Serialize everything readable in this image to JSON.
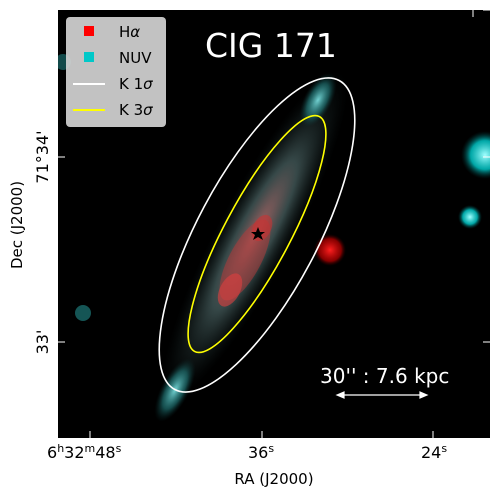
{
  "image": {
    "title": "CIG 171",
    "xlabel": "RA (J2000)",
    "ylabel": "Dec (J2000)",
    "x_ticks": [
      {
        "label_main": "6",
        "sup1": "h",
        "mid": "32",
        "sup2": "m",
        "tail": "48",
        "sup3": "s"
      },
      {
        "label_main": "36",
        "sup": "s"
      },
      {
        "label_main": "24",
        "sup": "s"
      }
    ],
    "y_ticks": [
      "71°34'",
      "33'"
    ],
    "legend": [
      {
        "label_main": "H",
        "label_italic": "α",
        "marker": "square",
        "color": "#ff0000"
      },
      {
        "label_main": "NUV",
        "label_italic": "",
        "marker": "square",
        "color": "#00c8c8"
      },
      {
        "label_main": "K 1",
        "label_italic": "σ",
        "marker": "line",
        "color": "#ffffff"
      },
      {
        "label_main": "K 3",
        "label_italic": "σ",
        "marker": "line",
        "color": "#ffff00"
      }
    ],
    "scale_bar_label": "30'' : 7.6 kpc",
    "colors": {
      "background": "#000000",
      "halpha": "#ff0000",
      "nuv": "#00c8c8",
      "k1sigma": "#ffffff",
      "k3sigma": "#ffff00",
      "legend_bg": "#d3d3d3"
    },
    "center_marker": "star"
  }
}
